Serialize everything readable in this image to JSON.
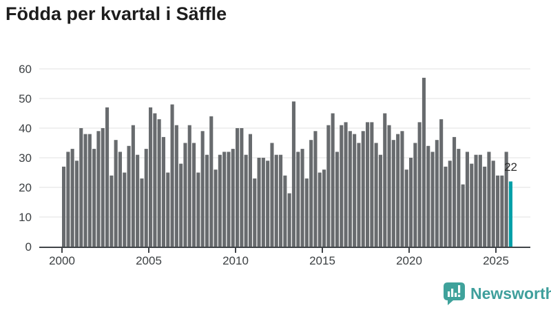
{
  "title": "Födda per kvartal i Säffle",
  "chart_data": {
    "type": "bar",
    "title": "Födda per kvartal i Säffle",
    "frequency": "quarterly",
    "start_period": "2000-Q1",
    "end_period": "2025-Q4",
    "values": [
      27,
      32,
      33,
      29,
      40,
      38,
      38,
      33,
      39,
      40,
      47,
      24,
      36,
      32,
      25,
      34,
      41,
      31,
      23,
      33,
      47,
      45,
      43,
      37,
      25,
      48,
      41,
      28,
      35,
      41,
      35,
      25,
      39,
      31,
      44,
      26,
      31,
      32,
      32,
      33,
      40,
      40,
      31,
      38,
      23,
      30,
      30,
      29,
      35,
      31,
      31,
      24,
      18,
      49,
      32,
      33,
      23,
      36,
      39,
      25,
      26,
      41,
      45,
      32,
      41,
      42,
      39,
      38,
      35,
      39,
      42,
      42,
      35,
      31,
      45,
      41,
      36,
      38,
      39,
      26,
      30,
      35,
      42,
      57,
      34,
      32,
      36,
      43,
      27,
      29,
      37,
      33,
      21,
      32,
      28,
      31,
      31,
      27,
      32,
      29,
      24,
      24,
      32,
      22
    ],
    "xticks": [
      "2000",
      "2005",
      "2010",
      "2015",
      "2020",
      "2025"
    ],
    "yticks": [
      0,
      10,
      20,
      30,
      40,
      50,
      60
    ],
    "ylim": [
      0,
      60
    ],
    "grid": "horizontal",
    "legend": "none",
    "bar_color": "#686b6e",
    "highlight_color": "#00a0a8",
    "highlight_index": 103,
    "annotation": {
      "text": "22",
      "value": 22,
      "target": "last-bar"
    }
  },
  "branding": {
    "name": "Newsworthy",
    "icon": "speech-bubble-bar-chart",
    "color": "#3f9f9c"
  }
}
